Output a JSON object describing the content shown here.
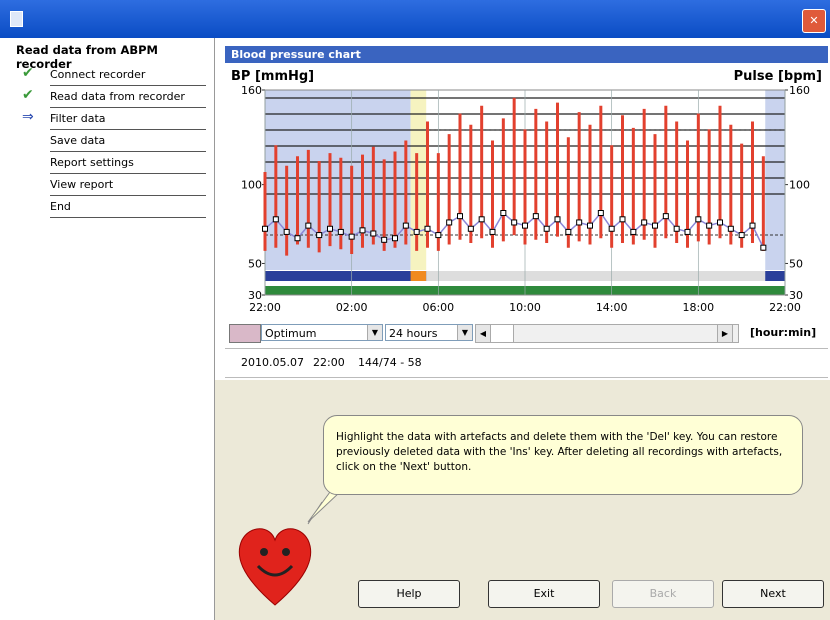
{
  "sidebar": {
    "title": "Read data from ABPM recorder",
    "steps": [
      "Connect recorder",
      "Read data from recorder",
      "Filter data",
      "Save data",
      "Report settings",
      "View report",
      "End"
    ]
  },
  "panel": {
    "title": "Blood pressure chart"
  },
  "chart_data": {
    "type": "range-bar",
    "y_label": "BP [mmHg]",
    "y2_label": "Pulse [bpm]",
    "x": [
      0,
      0.5,
      1,
      1.5,
      2,
      2.5,
      3,
      3.5,
      4,
      4.5,
      5,
      5.5,
      6,
      6.5,
      7,
      7.5,
      8,
      8.5,
      9,
      9.5,
      10,
      10.5,
      11,
      11.5,
      12,
      12.5,
      13,
      13.5,
      14,
      14.5,
      15,
      15.5,
      16,
      16.5,
      17,
      17.5,
      18,
      18.5,
      19,
      19.5,
      20,
      20.5,
      21,
      21.5,
      22,
      22.5,
      23
    ],
    "series": [
      {
        "color": "#e2402e",
        "values": [
          108,
          125,
          112,
          118,
          122,
          115,
          120,
          117,
          112,
          119,
          124,
          116,
          121,
          128,
          120,
          140,
          120,
          132,
          145,
          138,
          150,
          128,
          142,
          155,
          135,
          148,
          140,
          152,
          130,
          146,
          138,
          150,
          125,
          144,
          136,
          148,
          132,
          150,
          140,
          128,
          145,
          135,
          150,
          138,
          126,
          140,
          118
        ]
      },
      {
        "color": "#e2402e",
        "values": [
          58,
          60,
          55,
          62,
          60,
          57,
          61,
          59,
          56,
          60,
          62,
          58,
          60,
          62,
          58,
          60,
          58,
          62,
          65,
          63,
          66,
          60,
          64,
          68,
          62,
          65,
          63,
          67,
          60,
          64,
          62,
          66,
          60,
          63,
          62,
          65,
          60,
          66,
          63,
          60,
          64,
          62,
          66,
          62,
          60,
          63,
          58
        ]
      },
      {
        "color": "#8a86d8",
        "axis": "y2",
        "values": [
          72,
          78,
          70,
          66,
          74,
          68,
          72,
          70,
          67,
          71,
          69,
          65,
          66,
          74,
          70,
          72,
          68,
          76,
          80,
          72,
          78,
          70,
          82,
          76,
          74,
          80,
          72,
          78,
          70,
          76,
          74,
          82,
          72,
          78,
          70,
          76,
          74,
          80,
          72,
          70,
          78,
          74,
          76,
          72,
          68,
          74,
          60
        ]
      }
    ],
    "xlim": [
      0,
      24
    ],
    "xticks": [
      {
        "value": 0,
        "label": "22:00"
      },
      {
        "value": 4,
        "label": "02:00"
      },
      {
        "value": 8,
        "label": "06:00"
      },
      {
        "value": 12,
        "label": "10:00"
      },
      {
        "value": 16,
        "label": "14:00"
      },
      {
        "value": 20,
        "label": "18:00"
      },
      {
        "value": 24,
        "label": "22:00"
      }
    ],
    "ylim": [
      30,
      160
    ],
    "yticks": [
      30,
      50,
      100,
      160
    ],
    "y2lim": [
      30,
      160
    ],
    "y2ticks": [
      30,
      50,
      100,
      160
    ]
  },
  "controls": {
    "profile": "Optimum",
    "range": "24 hours",
    "unit": "[hour:min]"
  },
  "status": {
    "date": "2010.05.07",
    "time": "22:00",
    "reading": "144/74 - 58"
  },
  "tip": "Highlight the data with artefacts and  delete them with the 'Del' key. You can restore previously deleted data with the 'Ins' key. After deleting all recordings with artefacts, click on the 'Next' button.",
  "buttons": [
    "Help",
    "Exit",
    "Back",
    "Next"
  ]
}
